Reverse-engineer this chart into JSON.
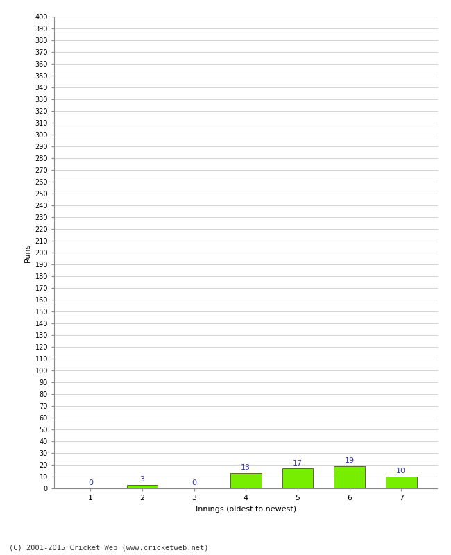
{
  "categories": [
    "1",
    "2",
    "3",
    "4",
    "5",
    "6",
    "7"
  ],
  "values": [
    0,
    3,
    0,
    13,
    17,
    19,
    10
  ],
  "bar_color": "#77ee00",
  "bar_edge_color": "#333300",
  "label_color": "#3333aa",
  "xlabel": "Innings (oldest to newest)",
  "ylabel": "Runs",
  "ylim": [
    0,
    400
  ],
  "ytick_step": 10,
  "background_color": "#ffffff",
  "grid_color": "#cccccc",
  "footer": "(C) 2001-2015 Cricket Web (www.cricketweb.net)"
}
